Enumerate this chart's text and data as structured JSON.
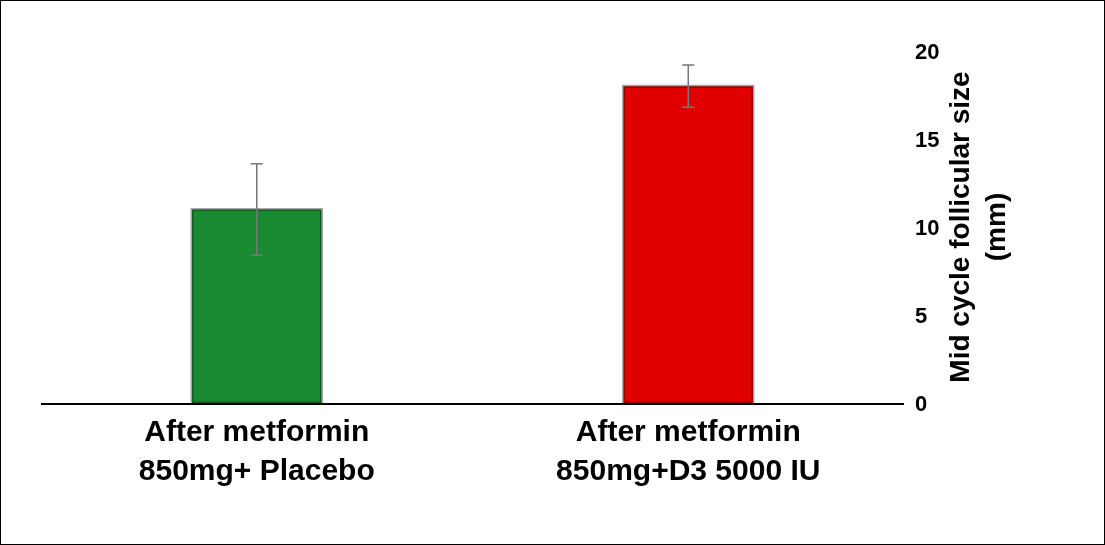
{
  "chart_data": {
    "type": "bar",
    "categories": [
      "After metformin\n850mg+ Placebo",
      "After metformin\n850mg+D3 5000 IU"
    ],
    "values": [
      11.0,
      18.0
    ],
    "errors": [
      2.6,
      1.2
    ],
    "colors": [
      "#1a8a32",
      "#e00000"
    ],
    "ylabel": "Mid cycle follicular size\n(mm)",
    "ylim": [
      0,
      20
    ],
    "yticks": [
      0,
      5,
      10,
      15,
      20
    ],
    "grid": false
  }
}
